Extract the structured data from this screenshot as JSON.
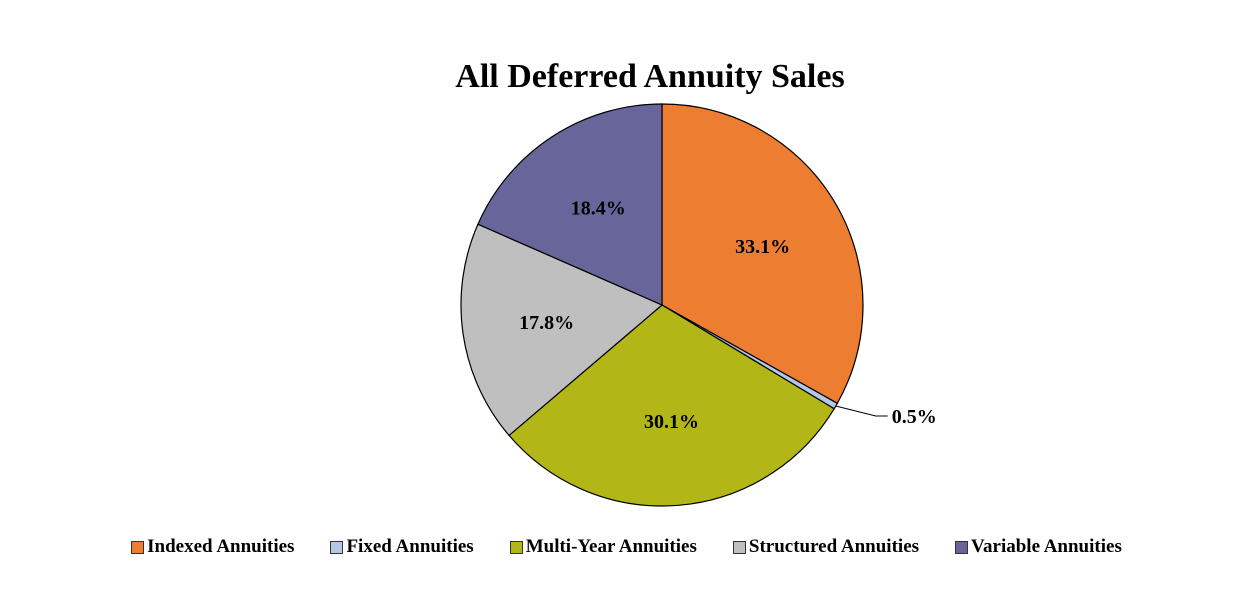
{
  "chart_data": {
    "type": "pie",
    "title": "All Deferred Annuity Sales",
    "categories": [
      "Indexed Annuities",
      "Fixed Annuities",
      "Multi-Year Annuities",
      "Structured Annuities",
      "Variable Annuities"
    ],
    "values": [
      33.1,
      0.5,
      30.1,
      17.8,
      18.4
    ],
    "labels": [
      "33.1%",
      "0.5%",
      "30.1%",
      "17.8%",
      "18.4%"
    ],
    "colors": [
      "#ED7D31",
      "#B4C7E7",
      "#B2B617",
      "#BFBFBF",
      "#67659A"
    ],
    "legend_position": "bottom",
    "start_angle": "12 o'clock, clockwise"
  }
}
